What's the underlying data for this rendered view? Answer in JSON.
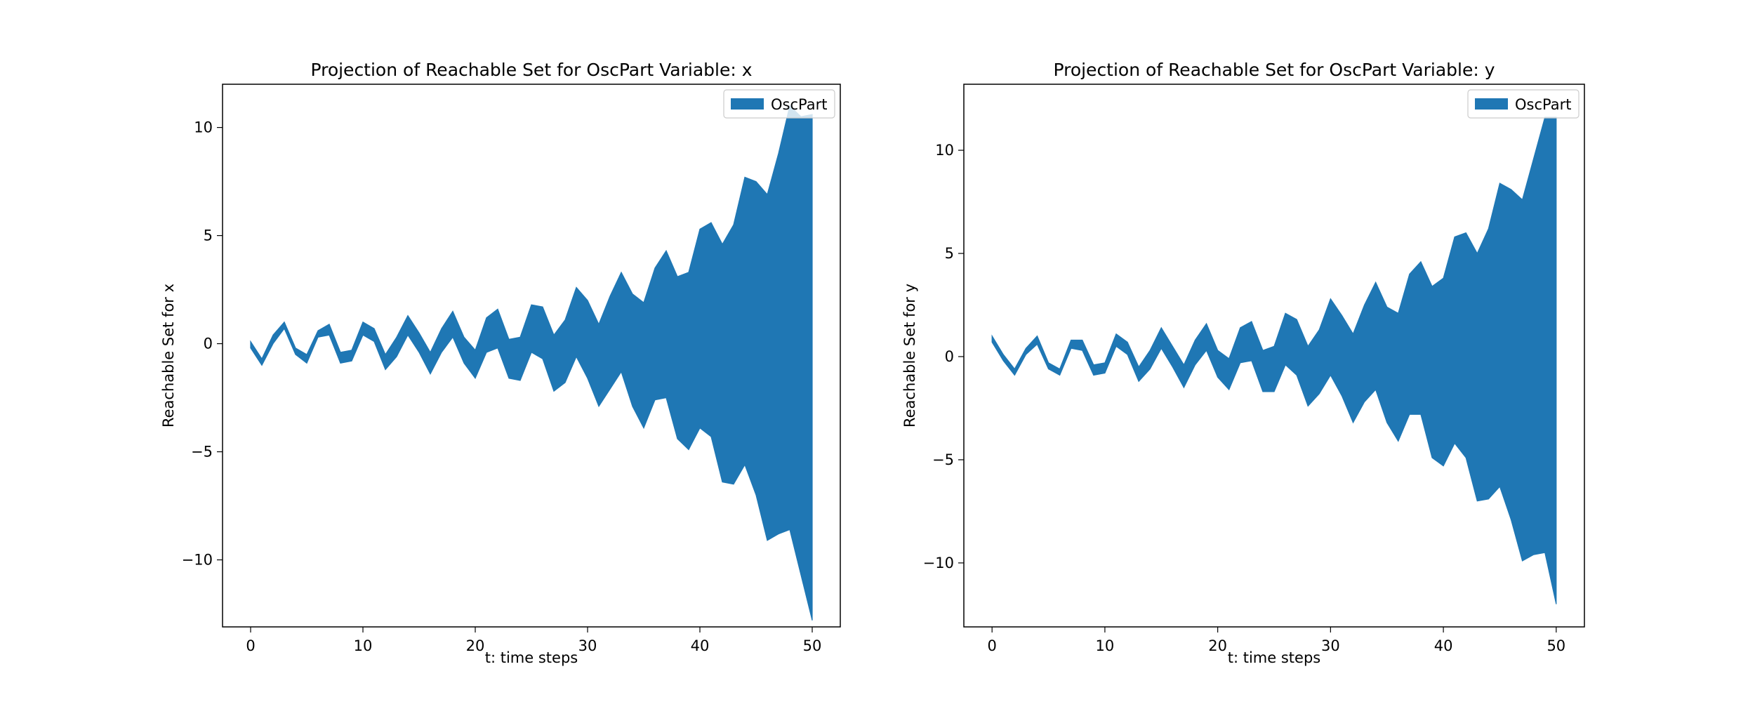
{
  "chart_data": [
    {
      "type": "area",
      "title": "Projection of Reachable Set for OscPart Variable: x",
      "xlabel": "t: time steps",
      "ylabel": "Reachable Set for x",
      "xlim": [
        -2.5,
        52.5
      ],
      "ylim": [
        -13.1,
        12.0
      ],
      "xticks": [
        0,
        10,
        20,
        30,
        40,
        50
      ],
      "yticks": [
        -10,
        -5,
        0,
        5,
        10
      ],
      "ytick_labels": [
        "−10",
        "−5",
        "0",
        "5",
        "10"
      ],
      "legend_position": "top-right",
      "series": [
        {
          "name": "OscPart",
          "color": "#1f77b4",
          "x": [
            0,
            1,
            2,
            3,
            4,
            5,
            6,
            7,
            8,
            9,
            10,
            11,
            12,
            13,
            14,
            15,
            16,
            17,
            18,
            19,
            20,
            21,
            22,
            23,
            24,
            25,
            26,
            27,
            28,
            29,
            30,
            31,
            32,
            33,
            34,
            35,
            36,
            37,
            38,
            39,
            40,
            41,
            42,
            43,
            44,
            45,
            46,
            47,
            48,
            49,
            50
          ],
          "upper": [
            0.1,
            -0.7,
            0.4,
            1.0,
            -0.2,
            -0.5,
            0.6,
            0.9,
            -0.4,
            -0.3,
            1.0,
            0.7,
            -0.5,
            0.3,
            1.3,
            0.5,
            -0.4,
            0.7,
            1.5,
            0.3,
            -0.3,
            1.2,
            1.6,
            0.2,
            0.3,
            1.8,
            1.7,
            0.4,
            1.1,
            2.6,
            2.0,
            0.9,
            2.2,
            3.3,
            2.3,
            1.9,
            3.5,
            4.3,
            3.1,
            3.3,
            5.3,
            5.6,
            4.6,
            5.5,
            7.7,
            7.5,
            6.9,
            8.8,
            11.0,
            10.5,
            10.6
          ],
          "lower": [
            -0.2,
            -1.0,
            0.0,
            0.7,
            -0.5,
            -0.9,
            0.3,
            0.4,
            -0.9,
            -0.8,
            0.4,
            0.1,
            -1.2,
            -0.6,
            0.4,
            -0.4,
            -1.4,
            -0.4,
            0.3,
            -0.9,
            -1.6,
            -0.4,
            -0.2,
            -1.6,
            -1.7,
            -0.4,
            -0.7,
            -2.2,
            -1.8,
            -0.6,
            -1.6,
            -2.9,
            -2.1,
            -1.3,
            -2.9,
            -3.9,
            -2.6,
            -2.5,
            -4.4,
            -4.9,
            -3.9,
            -4.3,
            -6.4,
            -6.5,
            -5.6,
            -7.0,
            -9.1,
            -8.8,
            -8.6,
            -10.7,
            -12.8
          ]
        }
      ]
    },
    {
      "type": "area",
      "title": "Projection of Reachable Set for OscPart Variable: y",
      "xlabel": "t: time steps",
      "ylabel": "Reachable Set for y",
      "xlim": [
        -2.5,
        52.5
      ],
      "ylim": [
        -13.1,
        13.2
      ],
      "xticks": [
        0,
        10,
        20,
        30,
        40,
        50
      ],
      "yticks": [
        -10,
        -5,
        0,
        5,
        10
      ],
      "ytick_labels": [
        "−10",
        "−5",
        "0",
        "5",
        "10"
      ],
      "legend_position": "top-right",
      "series": [
        {
          "name": "OscPart",
          "color": "#1f77b4",
          "x": [
            0,
            1,
            2,
            3,
            4,
            5,
            6,
            7,
            8,
            9,
            10,
            11,
            12,
            13,
            14,
            15,
            16,
            17,
            18,
            19,
            20,
            21,
            22,
            23,
            24,
            25,
            26,
            27,
            28,
            29,
            30,
            31,
            32,
            33,
            34,
            35,
            36,
            37,
            38,
            39,
            40,
            41,
            42,
            43,
            44,
            45,
            46,
            47,
            48,
            49,
            50
          ],
          "upper": [
            1.0,
            0.1,
            -0.6,
            0.4,
            1.0,
            -0.3,
            -0.6,
            0.8,
            0.8,
            -0.4,
            -0.3,
            1.1,
            0.7,
            -0.5,
            0.3,
            1.4,
            0.5,
            -0.4,
            0.8,
            1.6,
            0.3,
            -0.1,
            1.4,
            1.7,
            0.3,
            0.5,
            2.1,
            1.8,
            0.5,
            1.3,
            2.8,
            2.0,
            1.1,
            2.5,
            3.6,
            2.4,
            2.1,
            4.0,
            4.6,
            3.4,
            3.8,
            5.8,
            6.0,
            5.0,
            6.2,
            8.4,
            8.1,
            7.6,
            9.6,
            11.6,
            11.6
          ],
          "lower": [
            0.7,
            -0.2,
            -0.9,
            0.1,
            0.6,
            -0.6,
            -0.9,
            0.4,
            0.3,
            -0.9,
            -0.8,
            0.5,
            0.1,
            -1.2,
            -0.6,
            0.4,
            -0.5,
            -1.5,
            -0.4,
            0.3,
            -1.0,
            -1.6,
            -0.3,
            -0.2,
            -1.7,
            -1.7,
            -0.4,
            -0.9,
            -2.4,
            -1.8,
            -0.9,
            -1.9,
            -3.2,
            -2.2,
            -1.6,
            -3.2,
            -4.1,
            -2.8,
            -2.8,
            -4.9,
            -5.3,
            -4.2,
            -4.9,
            -7.0,
            -6.9,
            -6.3,
            -7.9,
            -9.9,
            -9.6,
            -9.5,
            -12.0
          ]
        }
      ]
    }
  ]
}
